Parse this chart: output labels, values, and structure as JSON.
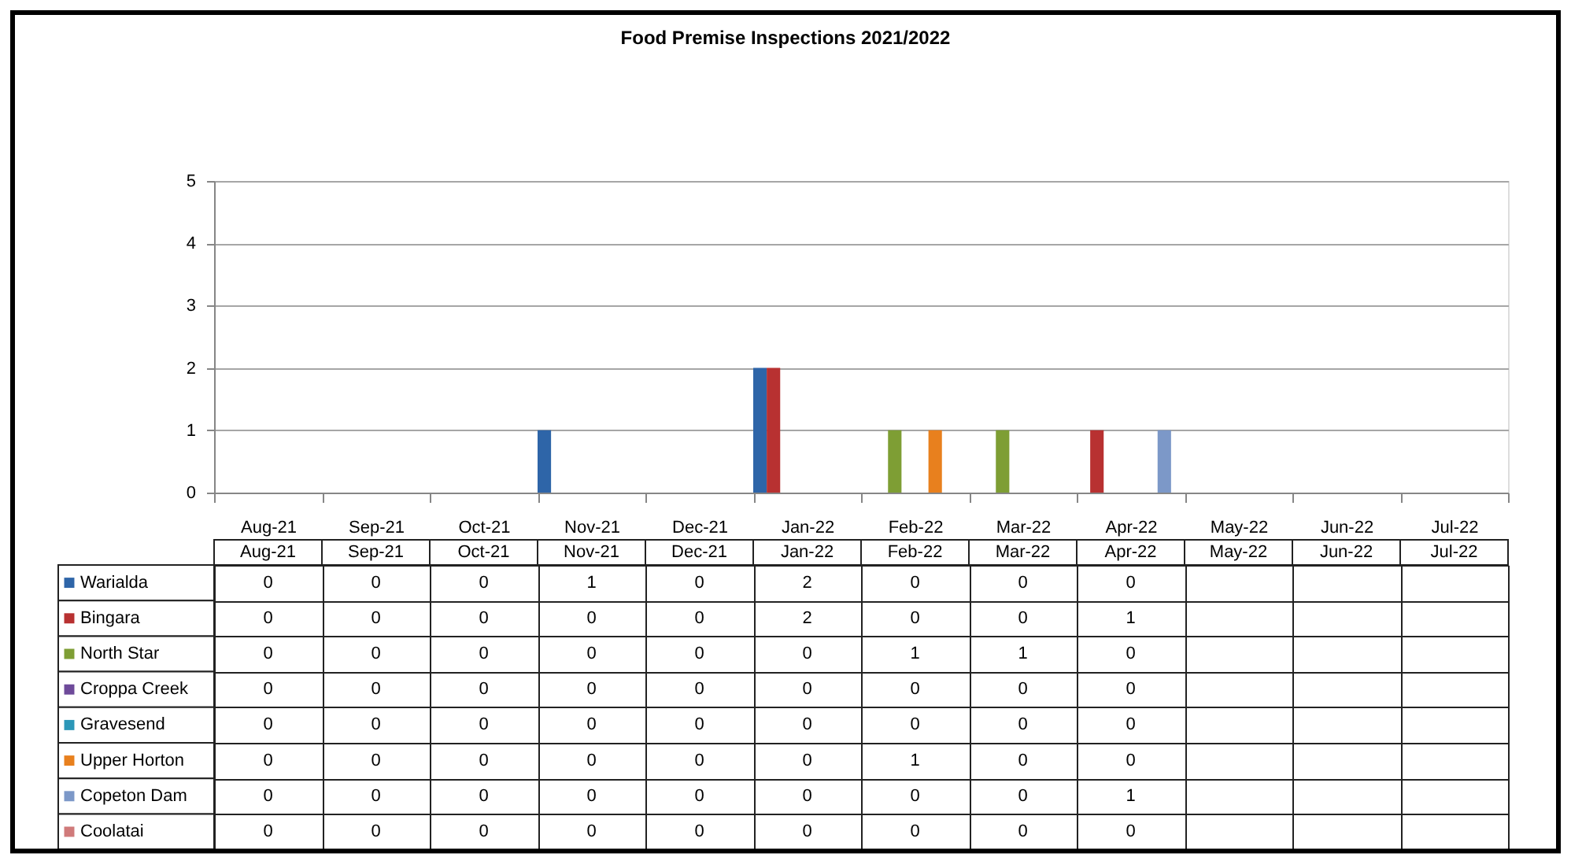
{
  "chart_data": {
    "type": "bar",
    "title": "Food Premise Inspections 2021/2022",
    "categories": [
      "Aug-21",
      "Sep-21",
      "Oct-21",
      "Nov-21",
      "Dec-21",
      "Jan-22",
      "Feb-22",
      "Mar-22",
      "Apr-22",
      "May-22",
      "Jun-22",
      "Jul-22"
    ],
    "series": [
      {
        "name": "Warialda",
        "color": "#2e65a8",
        "values": [
          0,
          0,
          0,
          1,
          0,
          2,
          0,
          0,
          0,
          null,
          null,
          null
        ]
      },
      {
        "name": "Bingara",
        "color": "#b83131",
        "values": [
          0,
          0,
          0,
          0,
          0,
          2,
          0,
          0,
          1,
          null,
          null,
          null
        ]
      },
      {
        "name": "North Star",
        "color": "#7e9e34",
        "values": [
          0,
          0,
          0,
          0,
          0,
          0,
          1,
          1,
          0,
          null,
          null,
          null
        ]
      },
      {
        "name": "Croppa Creek",
        "color": "#6e4a9a",
        "values": [
          0,
          0,
          0,
          0,
          0,
          0,
          0,
          0,
          0,
          null,
          null,
          null
        ]
      },
      {
        "name": "Gravesend",
        "color": "#2c97b8",
        "values": [
          0,
          0,
          0,
          0,
          0,
          0,
          0,
          0,
          0,
          null,
          null,
          null
        ]
      },
      {
        "name": "Upper Horton",
        "color": "#e8801e",
        "values": [
          0,
          0,
          0,
          0,
          0,
          0,
          1,
          0,
          0,
          null,
          null,
          null
        ]
      },
      {
        "name": "Copeton Dam",
        "color": "#7c98c8",
        "values": [
          0,
          0,
          0,
          0,
          0,
          0,
          0,
          0,
          1,
          null,
          null,
          null
        ]
      },
      {
        "name": "Coolatai",
        "color": "#d07a7a",
        "values": [
          0,
          0,
          0,
          0,
          0,
          0,
          0,
          0,
          0,
          null,
          null,
          null
        ]
      }
    ],
    "ylim": [
      0,
      5
    ],
    "yticks": [
      0,
      1,
      2,
      3,
      4,
      5
    ],
    "grid": "y",
    "data_labels": true,
    "legend": "bottom"
  }
}
